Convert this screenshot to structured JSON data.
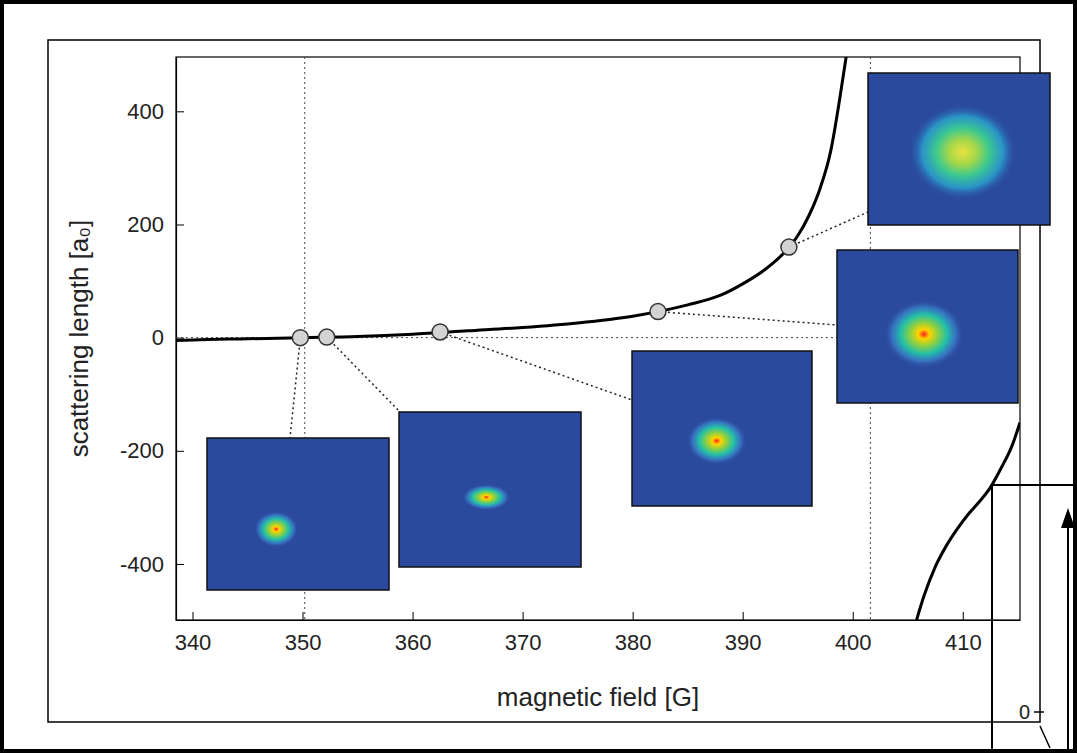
{
  "chart_data": {
    "type": "line",
    "x_label": "magnetic field [G]",
    "y_label": "scattering length [a₀]",
    "xlim": [
      338.5,
      415.2
    ],
    "ylim": [
      -499,
      496
    ],
    "xticks": [
      340,
      350,
      360,
      370,
      380,
      390,
      400,
      410
    ],
    "yticks": [
      -400,
      -200,
      0,
      200,
      400
    ],
    "grid": false,
    "reference_x": [
      350.2,
      401.6
    ],
    "reference_y": [
      0
    ],
    "annotations": [
      "0"
    ],
    "series": [
      {
        "type": "line",
        "color": "#000000",
        "line_style": "solid",
        "x": [
          338.5,
          340,
          345,
          350,
          355,
          360,
          365,
          370,
          375,
          380,
          385,
          388,
          390,
          392,
          394,
          395,
          396,
          397,
          398,
          398.8,
          399.4,
          402,
          405.8,
          406.5,
          407.5,
          408.5,
          409.5,
          410.5,
          411.5,
          412.5,
          413.5,
          414.5,
          415.2
        ],
        "values": [
          -5,
          -4,
          -2,
          0,
          2,
          6,
          12,
          18,
          26,
          38,
          58,
          75,
          95,
          120,
          155,
          180,
          215,
          262,
          330,
          420,
          496,
          null,
          -499,
          -455,
          -405,
          -368,
          -338,
          -312,
          -290,
          -265,
          -230,
          -190,
          -150
        ]
      },
      {
        "type": "scatter",
        "color": "#d3d3d3",
        "marker": "circle",
        "x": [
          349.8,
          352.2,
          362.5,
          382.3,
          394.2
        ],
        "values": [
          0,
          1,
          10,
          46,
          160
        ]
      }
    ]
  }
}
